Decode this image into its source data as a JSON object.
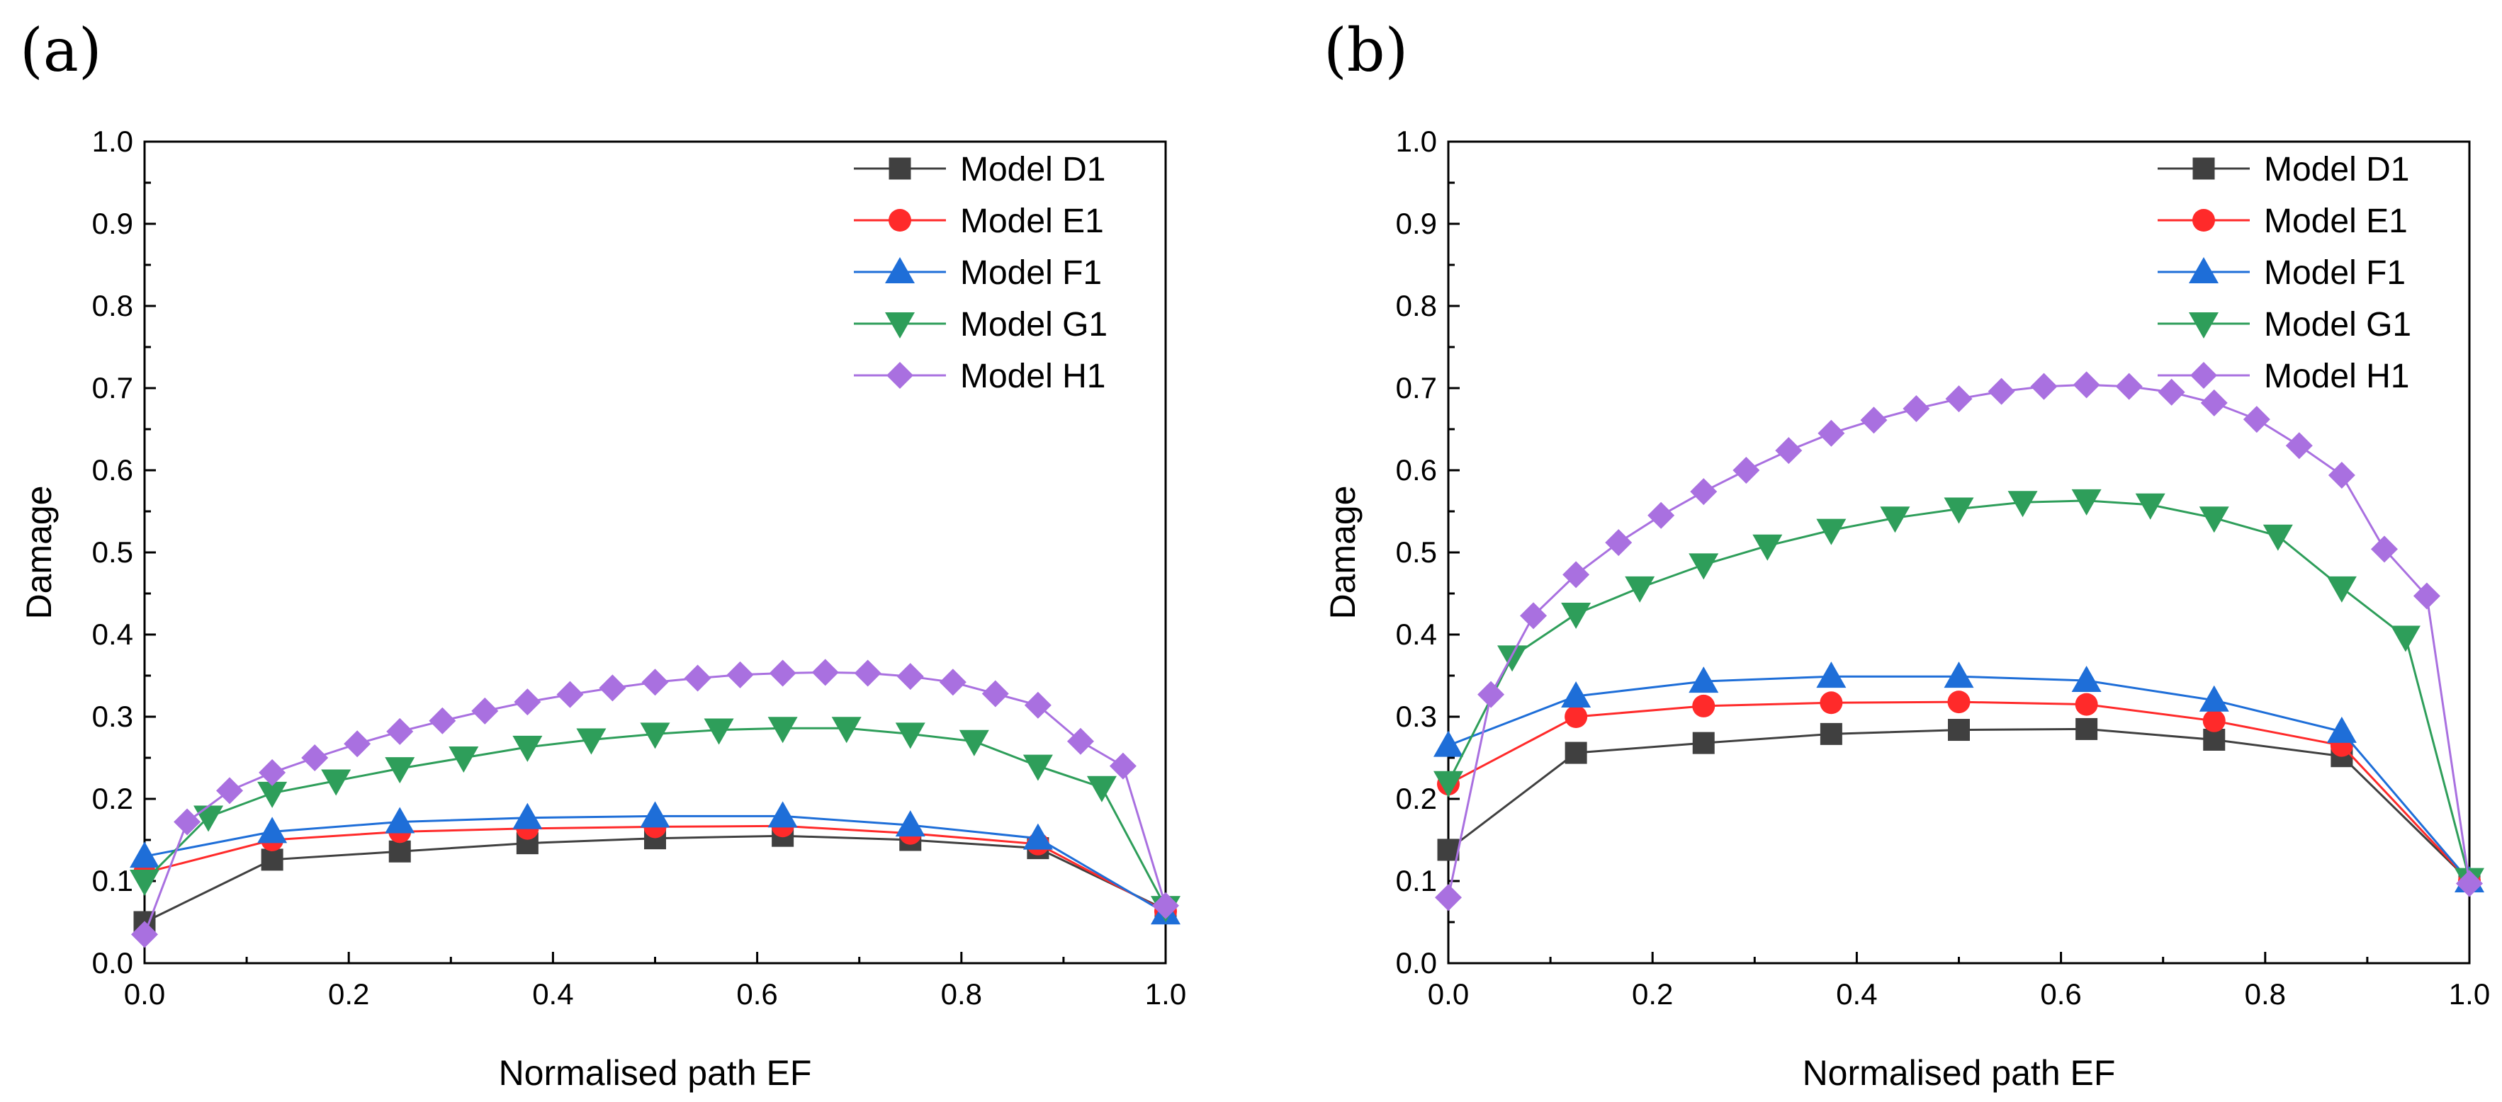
{
  "chart_data": [
    {
      "type": "line",
      "panel_label": "(a)",
      "xlabel": "Normalised path EF",
      "ylabel": "Damage",
      "xlim": [
        0,
        1
      ],
      "ylim": [
        0,
        1
      ],
      "xticks": [
        "0.0",
        "0.2",
        "0.4",
        "0.6",
        "0.8",
        "1.0"
      ],
      "yticks": [
        "0.0",
        "0.1",
        "0.2",
        "0.3",
        "0.4",
        "0.5",
        "0.6",
        "0.7",
        "0.8",
        "0.9",
        "1.0"
      ],
      "grid": false,
      "legend_position": "top-right",
      "series": [
        {
          "name": "Model D1",
          "color": "#404040",
          "marker": "square",
          "x": [
            0,
            0.125,
            0.25,
            0.375,
            0.5,
            0.625,
            0.75,
            0.875,
            1.0
          ],
          "y": [
            0.05,
            0.126,
            0.136,
            0.146,
            0.152,
            0.155,
            0.15,
            0.14,
            0.065
          ]
        },
        {
          "name": "Model E1",
          "color": "#ff2a2a",
          "marker": "circle",
          "x": [
            0,
            0.125,
            0.25,
            0.375,
            0.5,
            0.625,
            0.75,
            0.875,
            1.0
          ],
          "y": [
            0.11,
            0.15,
            0.16,
            0.164,
            0.166,
            0.167,
            0.158,
            0.145,
            0.063
          ]
        },
        {
          "name": "Model F1",
          "color": "#1e6ed8",
          "marker": "triangle-up",
          "x": [
            0,
            0.125,
            0.25,
            0.375,
            0.5,
            0.625,
            0.75,
            0.875,
            1.0
          ],
          "y": [
            0.13,
            0.16,
            0.172,
            0.177,
            0.179,
            0.179,
            0.168,
            0.152,
            0.061
          ]
        },
        {
          "name": "Model G1",
          "color": "#2e9e5a",
          "marker": "triangle-down",
          "x": [
            0,
            0.0625,
            0.125,
            0.1875,
            0.25,
            0.3125,
            0.375,
            0.4375,
            0.5,
            0.5625,
            0.625,
            0.6875,
            0.75,
            0.8125,
            0.875,
            0.9375,
            1.0
          ],
          "y": [
            0.1,
            0.178,
            0.207,
            0.222,
            0.237,
            0.25,
            0.263,
            0.272,
            0.279,
            0.284,
            0.286,
            0.286,
            0.279,
            0.27,
            0.24,
            0.214,
            0.068
          ]
        },
        {
          "name": "Model H1",
          "color": "#a970e0",
          "marker": "diamond",
          "x": [
            0,
            0.0417,
            0.0833,
            0.125,
            0.1667,
            0.2083,
            0.25,
            0.2917,
            0.3333,
            0.375,
            0.4167,
            0.4583,
            0.5,
            0.5417,
            0.5833,
            0.625,
            0.6667,
            0.7083,
            0.75,
            0.7917,
            0.8333,
            0.875,
            0.9167,
            0.9583,
            1.0
          ],
          "y": [
            0.035,
            0.172,
            0.21,
            0.232,
            0.25,
            0.267,
            0.282,
            0.295,
            0.307,
            0.318,
            0.327,
            0.335,
            0.342,
            0.347,
            0.351,
            0.353,
            0.354,
            0.353,
            0.349,
            0.342,
            0.328,
            0.314,
            0.27,
            0.24,
            0.07
          ]
        }
      ]
    },
    {
      "type": "line",
      "panel_label": "(b)",
      "xlabel": "Normalised path EF",
      "ylabel": "Damage",
      "xlim": [
        0,
        1
      ],
      "ylim": [
        0,
        1
      ],
      "xticks": [
        "0.0",
        "0.2",
        "0.4",
        "0.6",
        "0.8",
        "1.0"
      ],
      "yticks": [
        "0.0",
        "0.1",
        "0.2",
        "0.3",
        "0.4",
        "0.5",
        "0.6",
        "0.7",
        "0.8",
        "0.9",
        "1.0"
      ],
      "grid": false,
      "legend_position": "top-right",
      "series": [
        {
          "name": "Model D1",
          "color": "#404040",
          "marker": "square",
          "x": [
            0,
            0.125,
            0.25,
            0.375,
            0.5,
            0.625,
            0.75,
            0.875,
            1.0
          ],
          "y": [
            0.138,
            0.256,
            0.268,
            0.279,
            0.284,
            0.285,
            0.272,
            0.252,
            0.1
          ]
        },
        {
          "name": "Model E1",
          "color": "#ff2a2a",
          "marker": "circle",
          "x": [
            0,
            0.125,
            0.25,
            0.375,
            0.5,
            0.625,
            0.75,
            0.875,
            1.0
          ],
          "y": [
            0.218,
            0.3,
            0.313,
            0.317,
            0.318,
            0.315,
            0.295,
            0.265,
            0.1
          ]
        },
        {
          "name": "Model F1",
          "color": "#1e6ed8",
          "marker": "triangle-up",
          "x": [
            0,
            0.125,
            0.25,
            0.375,
            0.5,
            0.625,
            0.75,
            0.875,
            1.0
          ],
          "y": [
            0.265,
            0.325,
            0.343,
            0.349,
            0.349,
            0.344,
            0.32,
            0.282,
            0.1
          ]
        },
        {
          "name": "Model G1",
          "color": "#2e9e5a",
          "marker": "triangle-down",
          "x": [
            0,
            0.0625,
            0.125,
            0.1875,
            0.25,
            0.3125,
            0.375,
            0.4375,
            0.5,
            0.5625,
            0.625,
            0.6875,
            0.75,
            0.8125,
            0.875,
            0.9375,
            1.0
          ],
          "y": [
            0.22,
            0.373,
            0.425,
            0.457,
            0.485,
            0.508,
            0.527,
            0.542,
            0.553,
            0.561,
            0.563,
            0.558,
            0.542,
            0.52,
            0.457,
            0.397,
            0.102
          ]
        },
        {
          "name": "Model H1",
          "color": "#a970e0",
          "marker": "diamond",
          "x": [
            0,
            0.0417,
            0.0833,
            0.125,
            0.1667,
            0.2083,
            0.25,
            0.2917,
            0.3333,
            0.375,
            0.4167,
            0.4583,
            0.5,
            0.5417,
            0.5833,
            0.625,
            0.6667,
            0.7083,
            0.75,
            0.7917,
            0.8333,
            0.875,
            0.9167,
            0.9583,
            1.0
          ],
          "y": [
            0.08,
            0.327,
            0.423,
            0.473,
            0.512,
            0.545,
            0.574,
            0.6,
            0.624,
            0.645,
            0.661,
            0.675,
            0.687,
            0.696,
            0.702,
            0.704,
            0.702,
            0.695,
            0.682,
            0.662,
            0.63,
            0.594,
            0.504,
            0.447,
            0.097
          ]
        }
      ]
    }
  ]
}
